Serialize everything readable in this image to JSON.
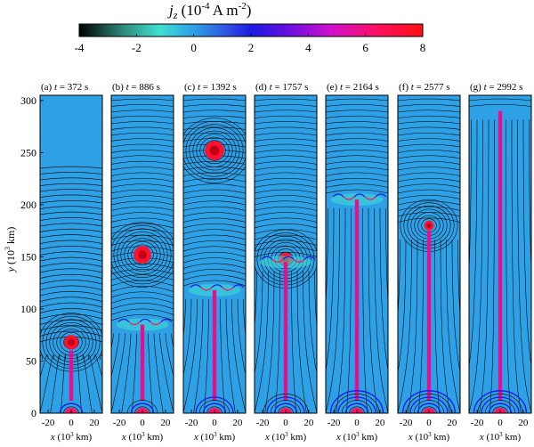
{
  "chart_data": {
    "type": "heatmap",
    "colorbar": {
      "title": "j_z (10^-4 A m^-2)",
      "title_symbol": "j",
      "title_subscript": "z",
      "title_unit_prefix": " (10",
      "title_exponent": "-4",
      "title_unit_suffix": " A m",
      "title_unit_exponent": "-2",
      "title_close": ")",
      "range": [
        -4,
        8
      ],
      "ticks": [
        -4,
        -2,
        0,
        2,
        4,
        6,
        8
      ],
      "colormap": [
        {
          "value": -4,
          "color": "#000000"
        },
        {
          "value": -2.4,
          "color": "#2f8f80"
        },
        {
          "value": -1.2,
          "color": "#3fe0d0"
        },
        {
          "value": 0,
          "color": "#2ea0e6"
        },
        {
          "value": 1.2,
          "color": "#3050e0"
        },
        {
          "value": 2,
          "color": "#1a1ae0"
        },
        {
          "value": 3.2,
          "color": "#6010e0"
        },
        {
          "value": 4.8,
          "color": "#d010d0"
        },
        {
          "value": 6.4,
          "color": "#ff1060"
        },
        {
          "value": 8,
          "color": "#ff1010"
        }
      ]
    },
    "ylabel": "y (10^3 km)",
    "ylabel_parts": {
      "symbol": "y",
      "prefix": " (10",
      "exp": "3",
      "suffix": " km)"
    },
    "xlabel_parts": {
      "symbol": "x",
      "prefix": " (10",
      "exp": "3",
      "suffix": " km)"
    },
    "y_range": [
      0,
      305
    ],
    "y_ticks": [
      0,
      50,
      100,
      150,
      200,
      250,
      300
    ],
    "x_range": [
      -27,
      27
    ],
    "x_ticks": [
      -20,
      0,
      20
    ],
    "panels": [
      {
        "label": "(a)",
        "tvar": "t",
        "time": "= 372 s",
        "plasmoid_y": 68,
        "plasmoid_r": 9,
        "sheet_top": 60,
        "shock_y": 240
      },
      {
        "label": "(b)",
        "tvar": "t",
        "time": "= 886 s",
        "plasmoid_y": 152,
        "plasmoid_r": 11,
        "sheet_top": 85,
        "shock_y": 0
      },
      {
        "label": "(c)",
        "tvar": "t",
        "time": "= 1392 s",
        "plasmoid_y": 252,
        "plasmoid_r": 12,
        "sheet_top": 118,
        "shock_y": 0
      },
      {
        "label": "(d)",
        "tvar": "t",
        "time": "= 1757 s",
        "plasmoid_y": 148,
        "plasmoid_r": 8,
        "sheet_top": 145,
        "shock_y": 0
      },
      {
        "label": "(e)",
        "tvar": "t",
        "time": "= 2164 s",
        "plasmoid_y": 0,
        "plasmoid_r": 0,
        "sheet_top": 205,
        "shock_y": 0
      },
      {
        "label": "(f)",
        "tvar": "t",
        "time": "= 2577 s",
        "plasmoid_y": 180,
        "plasmoid_r": 6,
        "sheet_top": 175,
        "shock_y": 0
      },
      {
        "label": "(g)",
        "tvar": "t",
        "time": "= 2992 s",
        "plasmoid_y": 0,
        "plasmoid_r": 0,
        "sheet_top": 290,
        "shock_y": 0
      }
    ]
  }
}
